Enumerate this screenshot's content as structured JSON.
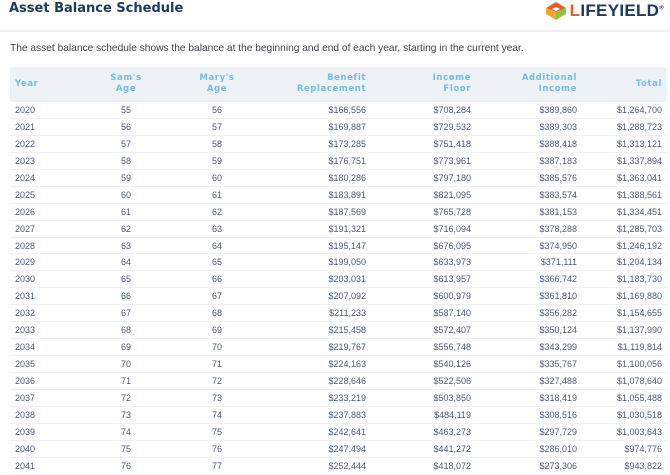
{
  "header": {
    "title": "Asset Balance Schedule",
    "logo_text": "LIFEYIELD",
    "logo_colors": [
      "#f05a28",
      "#f6a623",
      "#8dc63f",
      "#e8312f"
    ]
  },
  "description": "The asset balance schedule shows the balance at the beginning and end of each year, starting in the current year.",
  "table": {
    "columns": [
      [
        "Year",
        ""
      ],
      [
        "Sam's",
        "Age"
      ],
      [
        "Mary's",
        "Age"
      ],
      [
        "Benefit",
        "Replacement"
      ],
      [
        "Income",
        "Floor"
      ],
      [
        "Additional",
        "Income"
      ],
      [
        "Total",
        ""
      ]
    ],
    "rows": [
      [
        "2020",
        "55",
        "56",
        "$166,556",
        "$708,284",
        "$389,860",
        "$1,264,700"
      ],
      [
        "2021",
        "56",
        "57",
        "$169,887",
        "$729,532",
        "$389,303",
        "$1,288,723"
      ],
      [
        "2022",
        "57",
        "58",
        "$173,285",
        "$751,418",
        "$388,418",
        "$1,313,121"
      ],
      [
        "2023",
        "58",
        "59",
        "$176,751",
        "$773,961",
        "$387,183",
        "$1,337,894"
      ],
      [
        "2024",
        "59",
        "60",
        "$180,286",
        "$797,180",
        "$385,576",
        "$1,363,041"
      ],
      [
        "2025",
        "60",
        "61",
        "$183,891",
        "$821,095",
        "$383,574",
        "$1,388,561"
      ],
      [
        "2026",
        "61",
        "62",
        "$187,569",
        "$765,728",
        "$381,153",
        "$1,334,451"
      ],
      [
        "2027",
        "62",
        "63",
        "$191,321",
        "$716,094",
        "$378,288",
        "$1,285,703"
      ],
      [
        "2028",
        "63",
        "64",
        "$195,147",
        "$676,095",
        "$374,950",
        "$1,246,192"
      ],
      [
        "2029",
        "64",
        "65",
        "$199,050",
        "$633,973",
        "$371,111",
        "$1,204,134"
      ],
      [
        "2030",
        "65",
        "66",
        "$203,031",
        "$613,957",
        "$366,742",
        "$1,183,730"
      ],
      [
        "2031",
        "66",
        "67",
        "$207,092",
        "$600,979",
        "$361,810",
        "$1,169,880"
      ],
      [
        "2032",
        "67",
        "68",
        "$211,233",
        "$587,140",
        "$356,282",
        "$1,154,655"
      ],
      [
        "2033",
        "68",
        "69",
        "$215,458",
        "$572,407",
        "$350,124",
        "$1,137,990"
      ],
      [
        "2034",
        "69",
        "70",
        "$219,767",
        "$556,748",
        "$343,299",
        "$1,119,814"
      ],
      [
        "2035",
        "70",
        "71",
        "$224,163",
        "$540,126",
        "$335,767",
        "$1,100,056"
      ],
      [
        "2036",
        "71",
        "72",
        "$228,646",
        "$522,506",
        "$327,488",
        "$1,078,640"
      ],
      [
        "2037",
        "72",
        "73",
        "$233,219",
        "$503,850",
        "$318,419",
        "$1,055,488"
      ],
      [
        "2038",
        "73",
        "74",
        "$237,883",
        "$484,119",
        "$308,516",
        "$1,030,518"
      ],
      [
        "2039",
        "74",
        "75",
        "$242,641",
        "$463,273",
        "$297,729",
        "$1,003,643"
      ],
      [
        "2040",
        "75",
        "76",
        "$247,494",
        "$441,272",
        "$286,010",
        "$974,776"
      ],
      [
        "2041",
        "76",
        "77",
        "$252,444",
        "$418,072",
        "$273,306",
        "$943,822"
      ]
    ]
  }
}
